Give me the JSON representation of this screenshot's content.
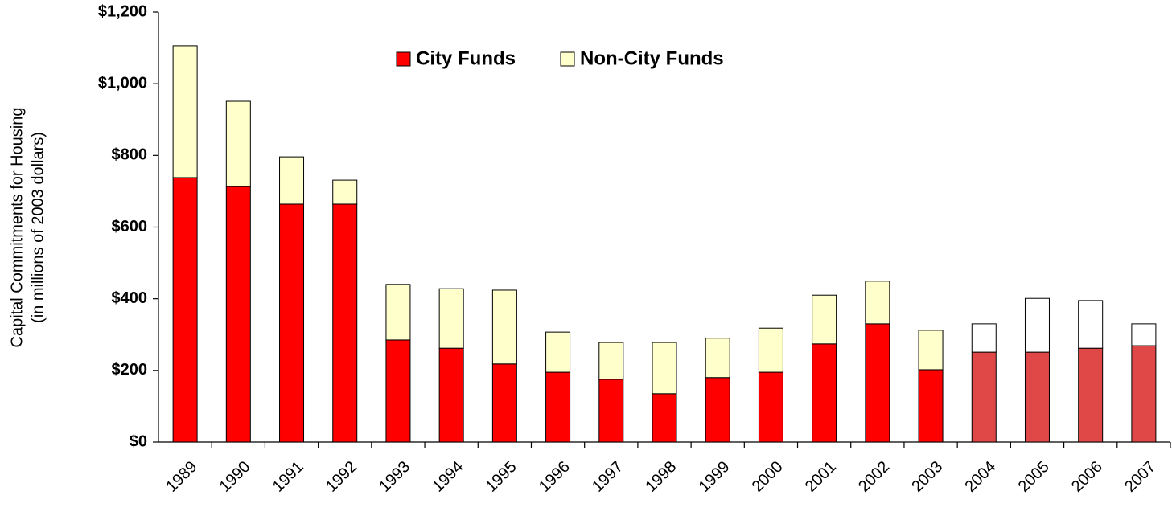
{
  "chart_data": {
    "type": "stacked_bar",
    "ylabel": [
      "Capital Commitments for Housing",
      "(in millions of 2003 dollars)"
    ],
    "categories": [
      "1989",
      "1990",
      "1991",
      "1992",
      "1993",
      "1994",
      "1995",
      "1996",
      "1997",
      "1998",
      "1999",
      "2000",
      "2001",
      "2002",
      "2003",
      "2004",
      "2005",
      "2006",
      "2007"
    ],
    "series": [
      {
        "name": "City Funds",
        "color": "#ff0000",
        "colors": [
          "#ff0000",
          "#ff0000",
          "#ff0000",
          "#ff0000",
          "#ff0000",
          "#ff0000",
          "#ff0000",
          "#ff0000",
          "#ff0000",
          "#ff0000",
          "#ff0000",
          "#ff0000",
          "#ff0000",
          "#ff0000",
          "#ff0000",
          "#e04848",
          "#e04848",
          "#e04848",
          "#e04848"
        ],
        "values": [
          738,
          713,
          664,
          664,
          285,
          262,
          218,
          195,
          175,
          135,
          180,
          195,
          274,
          330,
          202,
          251,
          251,
          262,
          269
        ]
      },
      {
        "name": "Non-City Funds",
        "color": "#ffffcc",
        "colors": [
          "#ffffcc",
          "#ffffcc",
          "#ffffcc",
          "#ffffcc",
          "#ffffcc",
          "#ffffcc",
          "#ffffcc",
          "#ffffcc",
          "#ffffcc",
          "#ffffcc",
          "#ffffcc",
          "#ffffcc",
          "#ffffcc",
          "#ffffcc",
          "#ffffcc",
          "#ffffff",
          "#ffffff",
          "#ffffff",
          "#ffffff"
        ],
        "values": [
          368,
          238,
          132,
          67,
          155,
          166,
          206,
          112,
          103,
          143,
          110,
          123,
          136,
          119,
          110,
          79,
          150,
          133,
          61
        ]
      }
    ],
    "ylim": [
      0,
      1200
    ],
    "yticks": [
      {
        "value": 0,
        "label": "$0"
      },
      {
        "value": 200,
        "label": "$200"
      },
      {
        "value": 400,
        "label": "$400"
      },
      {
        "value": 600,
        "label": "$600"
      },
      {
        "value": 800,
        "label": "$800"
      },
      {
        "value": 1000,
        "label": "$1,000"
      },
      {
        "value": 1200,
        "label": "$1,200"
      }
    ],
    "grid": false
  }
}
